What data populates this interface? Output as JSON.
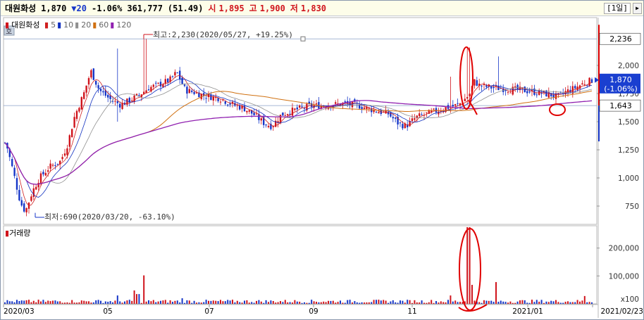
{
  "header": {
    "stock_name": "대원화성",
    "price": "1,870",
    "change": "▼20",
    "change_pct": "-1.06%",
    "volume": "361,777",
    "volume_ratio": "(51.49)",
    "open_label": "시",
    "open": "1,895",
    "high_label": "고",
    "high": "1,900",
    "low_label": "저",
    "low": "1,830",
    "period": "[1일]",
    "arrow": "▶"
  },
  "legend": {
    "name": "대원화성",
    "ma": [
      {
        "label": "5",
        "color": "#d02020"
      },
      {
        "label": "10",
        "color": "#1030c0"
      },
      {
        "label": "20",
        "color": "#909090"
      },
      {
        "label": "60",
        "color": "#d07010"
      },
      {
        "label": "120",
        "color": "#9020b0"
      }
    ],
    "volume_title": "거래량",
    "mode_icon": "호"
  },
  "annotations": {
    "max_text": "최고:2,230(2020/05/27, +19.25%)",
    "min_text": "최저:690(2020/03/20, -63.10%)"
  },
  "price_axis": {
    "ticks": [
      "2,000",
      "1,750",
      "1,500",
      "1,250",
      "1,000",
      "750"
    ],
    "marker_high": "2,236",
    "marker_current": "1,870",
    "marker_current_pct": "(-1.06%)",
    "marker_low": "1,643"
  },
  "volume_axis": {
    "ticks": [
      "200,000",
      "100,000"
    ],
    "unit": "x100"
  },
  "x_axis": {
    "ticks": [
      "2020/03",
      "05",
      "07",
      "09",
      "11",
      "2021/01",
      "2021/02/23"
    ]
  },
  "colors": {
    "up": "#d0141c",
    "down": "#1636c8",
    "accent_red": "#e00000"
  }
}
